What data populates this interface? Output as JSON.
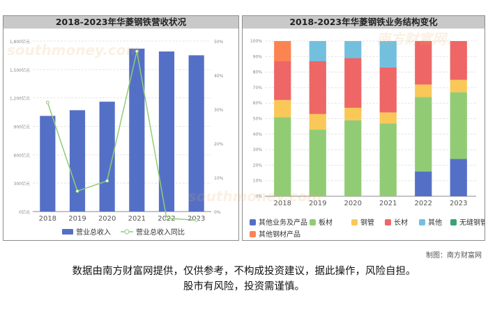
{
  "chart_data": [
    {
      "type": "bar",
      "title": "2018-2023年华菱钢铁营收状况",
      "categories": [
        "2018",
        "2019",
        "2020",
        "2021",
        "2022",
        "2023"
      ],
      "series": [
        {
          "name": "营业总收入",
          "kind": "bar",
          "axis": "left",
          "color": "#5470c6",
          "values": [
            1010,
            1070,
            1160,
            1720,
            1690,
            1650
          ]
        },
        {
          "name": "营业总收入同比",
          "kind": "line",
          "axis": "right",
          "color": "#91cc75",
          "values": [
            32,
            6,
            9,
            47,
            -2,
            -2.5
          ]
        }
      ],
      "y_left": {
        "ylim": [
          0,
          1800
        ],
        "ticks": [
          "0亿元",
          "300亿元",
          "600亿元",
          "900亿元",
          "1,200亿元",
          "1,500亿元",
          "1,800亿元"
        ]
      },
      "y_right": {
        "ylim": [
          0,
          50
        ],
        "ticks": [
          "0%",
          "10%",
          "20%",
          "30%",
          "40%",
          "50%"
        ]
      },
      "grid": true,
      "legend": "bottom"
    },
    {
      "type": "bar",
      "stacked": true,
      "title": "2018-2023年华菱钢铁业务结构变化",
      "categories": [
        "2018",
        "2019",
        "2020",
        "2021",
        "2022",
        "2023"
      ],
      "ylim": [
        0,
        100
      ],
      "y_ticks": [
        "0%",
        "10%",
        "20%",
        "30%",
        "40%",
        "50%",
        "60%",
        "70%",
        "80%",
        "90%",
        "100%"
      ],
      "series": [
        {
          "name": "其他业务及产品",
          "color": "#5470c6",
          "values": [
            0,
            0,
            0,
            0,
            16,
            24
          ]
        },
        {
          "name": "板材",
          "color": "#91cc75",
          "values": [
            51,
            43,
            49,
            47,
            48,
            43
          ]
        },
        {
          "name": "钢管",
          "color": "#fac858",
          "values": [
            11,
            10,
            8,
            7,
            8,
            8
          ]
        },
        {
          "name": "长材",
          "color": "#ee6666",
          "values": [
            25,
            34,
            32,
            29,
            28,
            25
          ]
        },
        {
          "name": "其他",
          "color": "#73c0de",
          "values": [
            0,
            13,
            11,
            17,
            0,
            0
          ]
        },
        {
          "name": "无缝钢管",
          "color": "#3ba272",
          "values": [
            0,
            0,
            0,
            0,
            0,
            0
          ]
        },
        {
          "name": "其他钢材产品",
          "color": "#fc8452",
          "values": [
            13,
            0,
            0,
            0,
            0,
            0
          ]
        }
      ],
      "grid": true,
      "legend": "bottom"
    }
  ],
  "footer": {
    "credit": "制图：南方财富网",
    "disclaimer_line1": "数据由南方财富网提供，仅供参考，不构成投资建议，据此操作，风险自担。",
    "disclaimer_line2": "股市有风险，投资需谨慎。"
  },
  "watermark": {
    "cn": "南方财富网",
    "en": "southmoney.com"
  }
}
